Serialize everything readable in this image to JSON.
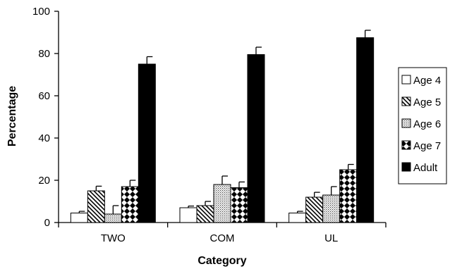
{
  "chart_data": {
    "type": "bar",
    "title": "",
    "xlabel": "Category",
    "ylabel": "Percentage",
    "ylim": [
      0,
      100
    ],
    "yticks": [
      0,
      20,
      40,
      60,
      80,
      100
    ],
    "grid": false,
    "legend_position": "right",
    "categories": [
      "TWO",
      "COM",
      "UL"
    ],
    "series": [
      {
        "name": "Age 4",
        "pattern": "white",
        "values": [
          4.5,
          7,
          4.5
        ],
        "errors": [
          0.8,
          0.8,
          0.8
        ]
      },
      {
        "name": "Age 5",
        "pattern": "diagonal-stripes",
        "values": [
          15,
          8,
          12
        ],
        "errors": [
          2.2,
          2,
          2.3
        ]
      },
      {
        "name": "Age 6",
        "pattern": "dots",
        "values": [
          4,
          18,
          13
        ],
        "errors": [
          4,
          4,
          4
        ]
      },
      {
        "name": "Age 7",
        "pattern": "checker",
        "values": [
          17,
          16.5,
          25
        ],
        "errors": [
          3,
          2.7,
          2.5
        ]
      },
      {
        "name": "Adult",
        "pattern": "black",
        "values": [
          75,
          79.5,
          87.5
        ],
        "errors": [
          3.5,
          3.5,
          3.5
        ]
      }
    ]
  }
}
